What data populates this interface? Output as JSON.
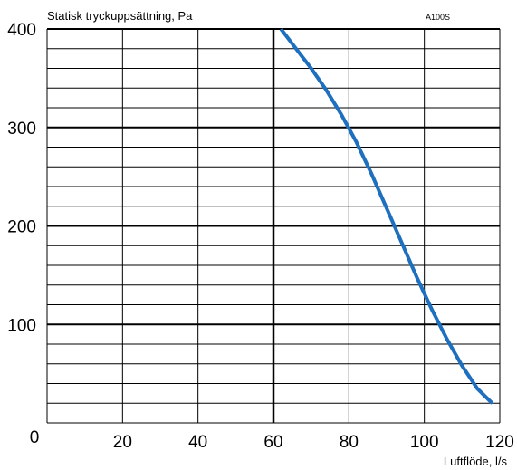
{
  "chart_data": {
    "type": "line",
    "title": "",
    "ylabel": "Statisk tryckuppsättning, Pa",
    "xlabel": "Luftflöde, l/s",
    "model_label": "A100S",
    "xlim": [
      0,
      120
    ],
    "ylim": [
      0,
      400
    ],
    "x_ticks": [
      0,
      20,
      40,
      60,
      80,
      100,
      120
    ],
    "y_ticks": [
      100,
      200,
      300,
      400
    ],
    "x_tick_labels": [
      "0",
      "20",
      "40",
      "60",
      "80",
      "100",
      "120"
    ],
    "y_tick_labels": [
      "100",
      "200",
      "300",
      "400"
    ],
    "x_major_grid": [
      0,
      20,
      40,
      60,
      80,
      100,
      120
    ],
    "x_bold_grid": [
      60
    ],
    "y_major_grid": [
      0,
      100,
      200,
      300,
      400
    ],
    "y_minor_step": 20,
    "grid": true,
    "series": [
      {
        "color": "#1f6fbf",
        "x": [
          62,
          66,
          70,
          74,
          78,
          82,
          86,
          90,
          94,
          98,
          102,
          106,
          110,
          114,
          118
        ],
        "y": [
          400,
          380,
          360,
          338,
          313,
          285,
          253,
          218,
          183,
          148,
          115,
          85,
          58,
          35,
          20
        ]
      }
    ]
  }
}
